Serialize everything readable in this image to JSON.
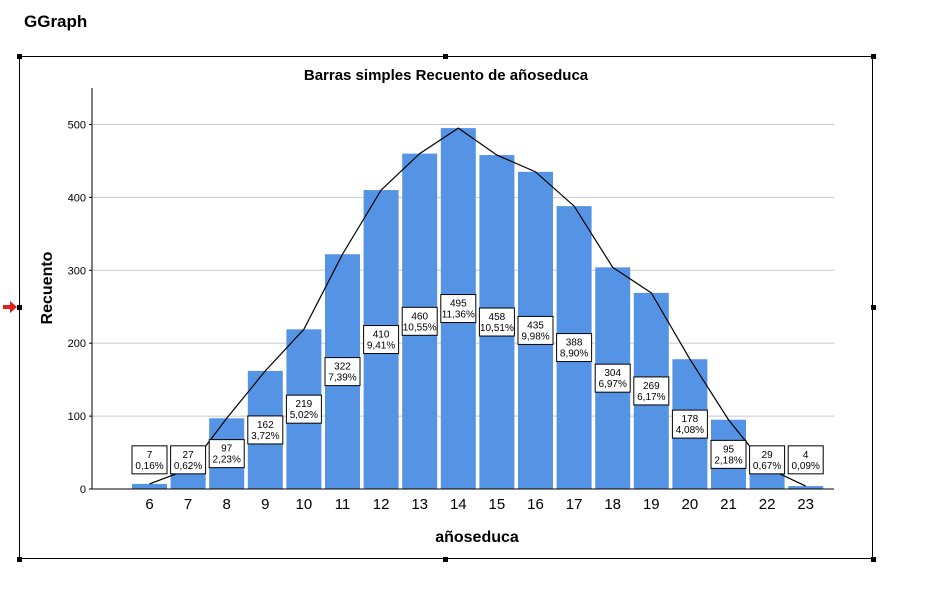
{
  "window": {
    "title": "GGraph"
  },
  "chart_data": {
    "type": "bar",
    "title": "Barras simples Recuento de añoseduca",
    "xlabel": "añoseduca",
    "ylabel": "Recuento",
    "ylim": [
      0,
      550
    ],
    "yticks": [
      "0",
      "100",
      "200",
      "300",
      "400",
      "500"
    ],
    "grid": true,
    "bar_color": "#5594e4",
    "overlay_line": true,
    "categories": [
      "6",
      "7",
      "8",
      "9",
      "10",
      "11",
      "12",
      "13",
      "14",
      "15",
      "16",
      "17",
      "18",
      "19",
      "20",
      "21",
      "22",
      "23"
    ],
    "values": [
      7,
      27,
      97,
      162,
      219,
      322,
      410,
      460,
      495,
      458,
      435,
      388,
      304,
      269,
      178,
      95,
      29,
      4
    ],
    "percent_labels": [
      "0,16%",
      "0,62%",
      "2,23%",
      "3,72%",
      "5,02%",
      "7,39%",
      "9,41%",
      "10,55%",
      "11,36%",
      "10,51%",
      "9,98%",
      "8,90%",
      "6,97%",
      "6,17%",
      "4,08%",
      "2,18%",
      "0,67%",
      "0,09%"
    ]
  }
}
